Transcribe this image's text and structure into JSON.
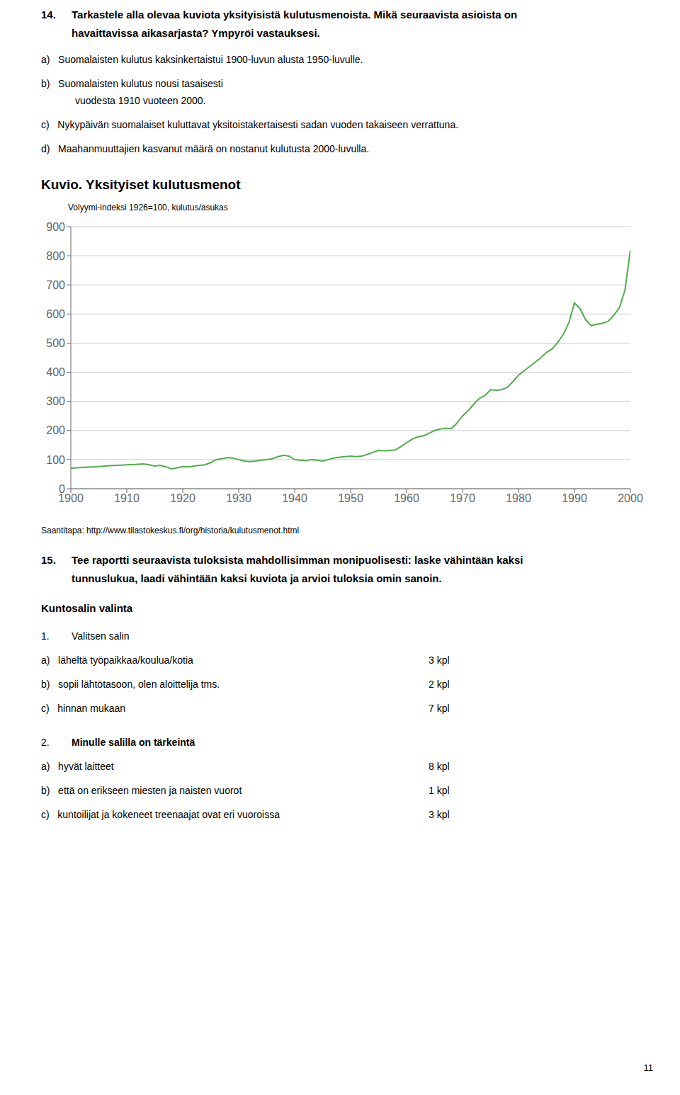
{
  "chart_data": {
    "type": "line",
    "title": "Kuvio. Yksityiset kulutusmenot",
    "y_label": "Volyymi-indeksi 1926=100, kulutus/asukas",
    "color": "#4daf4a",
    "grid": true,
    "x": [
      1900,
      1901,
      1902,
      1903,
      1904,
      1905,
      1906,
      1907,
      1908,
      1909,
      1910,
      1911,
      1912,
      1913,
      1914,
      1915,
      1916,
      1917,
      1918,
      1919,
      1920,
      1921,
      1922,
      1923,
      1924,
      1925,
      1926,
      1927,
      1928,
      1929,
      1930,
      1931,
      1932,
      1933,
      1934,
      1935,
      1936,
      1937,
      1938,
      1939,
      1940,
      1941,
      1942,
      1943,
      1944,
      1945,
      1946,
      1947,
      1948,
      1949,
      1950,
      1951,
      1952,
      1953,
      1954,
      1955,
      1956,
      1957,
      1958,
      1959,
      1960,
      1961,
      1962,
      1963,
      1964,
      1965,
      1966,
      1967,
      1968,
      1969,
      1970,
      1971,
      1972,
      1973,
      1974,
      1975,
      1976,
      1977,
      1978,
      1979,
      1980,
      1981,
      1982,
      1983,
      1984,
      1985,
      1986,
      1987,
      1988,
      1989,
      1990,
      1991,
      1992,
      1993,
      1994,
      1995,
      1996,
      1997,
      1998,
      1999,
      2000
    ],
    "values": [
      70,
      72,
      73,
      74,
      75,
      76,
      78,
      79,
      80,
      81,
      82,
      83,
      84,
      85,
      82,
      78,
      80,
      75,
      68,
      72,
      76,
      75,
      78,
      80,
      82,
      90,
      100,
      103,
      107,
      105,
      100,
      95,
      93,
      95,
      98,
      100,
      103,
      110,
      115,
      112,
      100,
      98,
      96,
      100,
      98,
      95,
      100,
      105,
      108,
      110,
      112,
      110,
      112,
      118,
      125,
      132,
      130,
      132,
      133,
      145,
      158,
      170,
      178,
      182,
      190,
      200,
      205,
      208,
      206,
      225,
      250,
      268,
      290,
      310,
      320,
      340,
      338,
      340,
      348,
      368,
      390,
      405,
      420,
      435,
      450,
      468,
      480,
      502,
      530,
      570,
      638,
      618,
      580,
      560,
      565,
      568,
      575,
      595,
      620,
      680,
      820
    ],
    "xlim": [
      1900,
      2000
    ],
    "ylim": [
      0,
      900
    ],
    "xticks": [
      1900,
      1910,
      1920,
      1930,
      1940,
      1950,
      1960,
      1970,
      1980,
      1990,
      2000
    ],
    "yticks": [
      0,
      100,
      200,
      300,
      400,
      500,
      600,
      700,
      800,
      900
    ],
    "annotations": [
      [
        "14.",
        "Tarkastele alla olevaa kuviota yksityisistä kulutusmenoista. Mikä seuraavista asioista on"
      ],
      [
        "havaittavissa aikasarjasta? Ympyröi vastauksesi."
      ],
      [
        "a)   Suomalaisten kulutus kaksinkertaistui 1900-luvun alusta 1950-luvulle."
      ],
      [
        "b)   Suomalaisten kulutus nousi tasaisesti"
      ],
      [
        "vuodesta 1910 vuoteen 2000."
      ],
      [
        "c)   Nykypäivän suomalaiset kuluttavat yksitoistakertaisesti sadan vuoden takaiseen verrattuna."
      ],
      [
        "d)   Maahanmuuttajien kasvanut määrä on nostanut kulutusta 2000-luvulla."
      ],
      [
        "Saantitapa: http://www.tilastokeskus.fi/org/historia/kulutusmenot.html"
      ],
      [
        "15.",
        "Tee raportti seuraavista tuloksista mahdollisimman monipuolisesti: laske vähintään kaksi"
      ],
      [
        "tunnuslukua, laadi vähintään kaksi kuviota ja arvioi tuloksia omin sanoin."
      ],
      [
        "Kuntosalin valinta"
      ],
      [
        "1.",
        "Valitsen salin"
      ],
      [
        "a)   läheltä työpaikkaa/koulua/kotia",
        "3 kpl"
      ],
      [
        "b)   sopii lähtötasoon, olen aloittelija tms.",
        "2 kpl"
      ],
      [
        "c)   hinnan mukaan",
        "7 kpl"
      ],
      [
        "2.",
        "Minulle salilla on tärkeintä"
      ],
      [
        "a)   hyvät laitteet",
        "8 kpl"
      ],
      [
        "b)   että on erikseen miesten ja naisten vuorot",
        "1 kpl"
      ],
      [
        "c)   kuntoilijat ja kokeneet treenaajat ovat eri vuoroissa",
        "3 kpl"
      ],
      [
        "11"
      ]
    ]
  }
}
